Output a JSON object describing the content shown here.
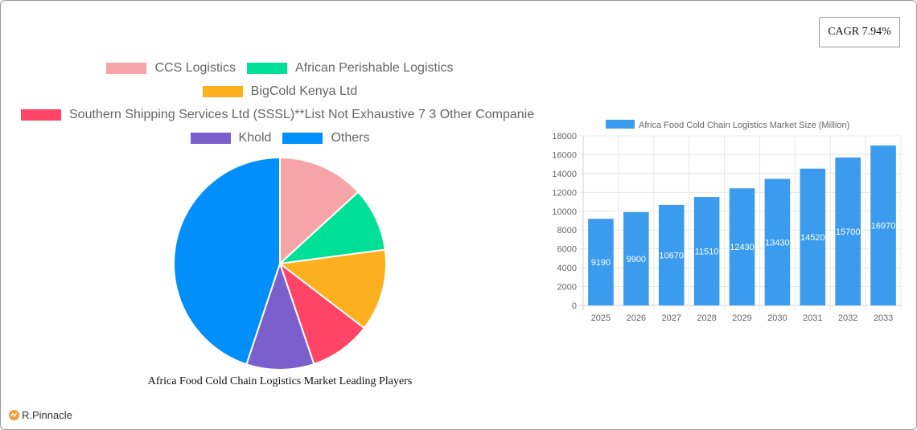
{
  "badge": {
    "cagr_label": "CAGR 7.94%"
  },
  "logo": {
    "text": "R.Pinnacle",
    "icon": "pinnacle-logo-icon"
  },
  "pie": {
    "title": "Africa Food Cold Chain Logistics Market Leading Players",
    "legend": [
      {
        "label": "CCS Logistics",
        "color": "#f7a4a8"
      },
      {
        "label": "African Perishable Logistics",
        "color": "#00e096"
      },
      {
        "label": "BigCold Kenya Ltd",
        "color": "#fdb01f"
      },
      {
        "label": "Southern Shipping Services Ltd (SSSL)**List Not Exhaustive 7 3 Other Companie",
        "color": "#ff4466"
      },
      {
        "label": "Khold",
        "color": "#7b5fcd"
      },
      {
        "label": "Others",
        "color": "#008ffb"
      }
    ]
  },
  "bar": {
    "legend_label": "Africa Food Cold Chain Logistics Market Size (Million)",
    "color": "#3a9bef"
  },
  "chart_data": [
    {
      "type": "pie",
      "title": "Africa Food Cold Chain Logistics Market Leading Players",
      "categories": [
        "CCS Logistics",
        "African Perishable Logistics",
        "BigCold Kenya Ltd",
        "Southern Shipping Services Ltd (SSSL)**List Not Exhaustive 7 3 Other Companie",
        "Khold",
        "Others"
      ],
      "values": [
        13.2,
        9.7,
        12.5,
        9.4,
        10.3,
        44.9
      ],
      "colors": [
        "#f7a4a8",
        "#00e096",
        "#fdb01f",
        "#ff4466",
        "#7b5fcd",
        "#008ffb"
      ],
      "legend_position": "top"
    },
    {
      "type": "bar",
      "title": "",
      "series": [
        {
          "name": "Africa Food Cold Chain Logistics Market Size (Million)",
          "values": [
            9190,
            9900,
            10670,
            11510,
            12430,
            13430,
            14520,
            15700,
            16970
          ]
        }
      ],
      "categories": [
        "2025",
        "2026",
        "2027",
        "2028",
        "2029",
        "2030",
        "2031",
        "2032",
        "2033"
      ],
      "xlabel": "",
      "ylabel": "",
      "ylim": [
        0,
        18000
      ],
      "yticks": [
        0,
        2000,
        4000,
        6000,
        8000,
        10000,
        12000,
        14000,
        16000,
        18000
      ],
      "grid": true,
      "legend_position": "top",
      "data_labels": true
    }
  ]
}
